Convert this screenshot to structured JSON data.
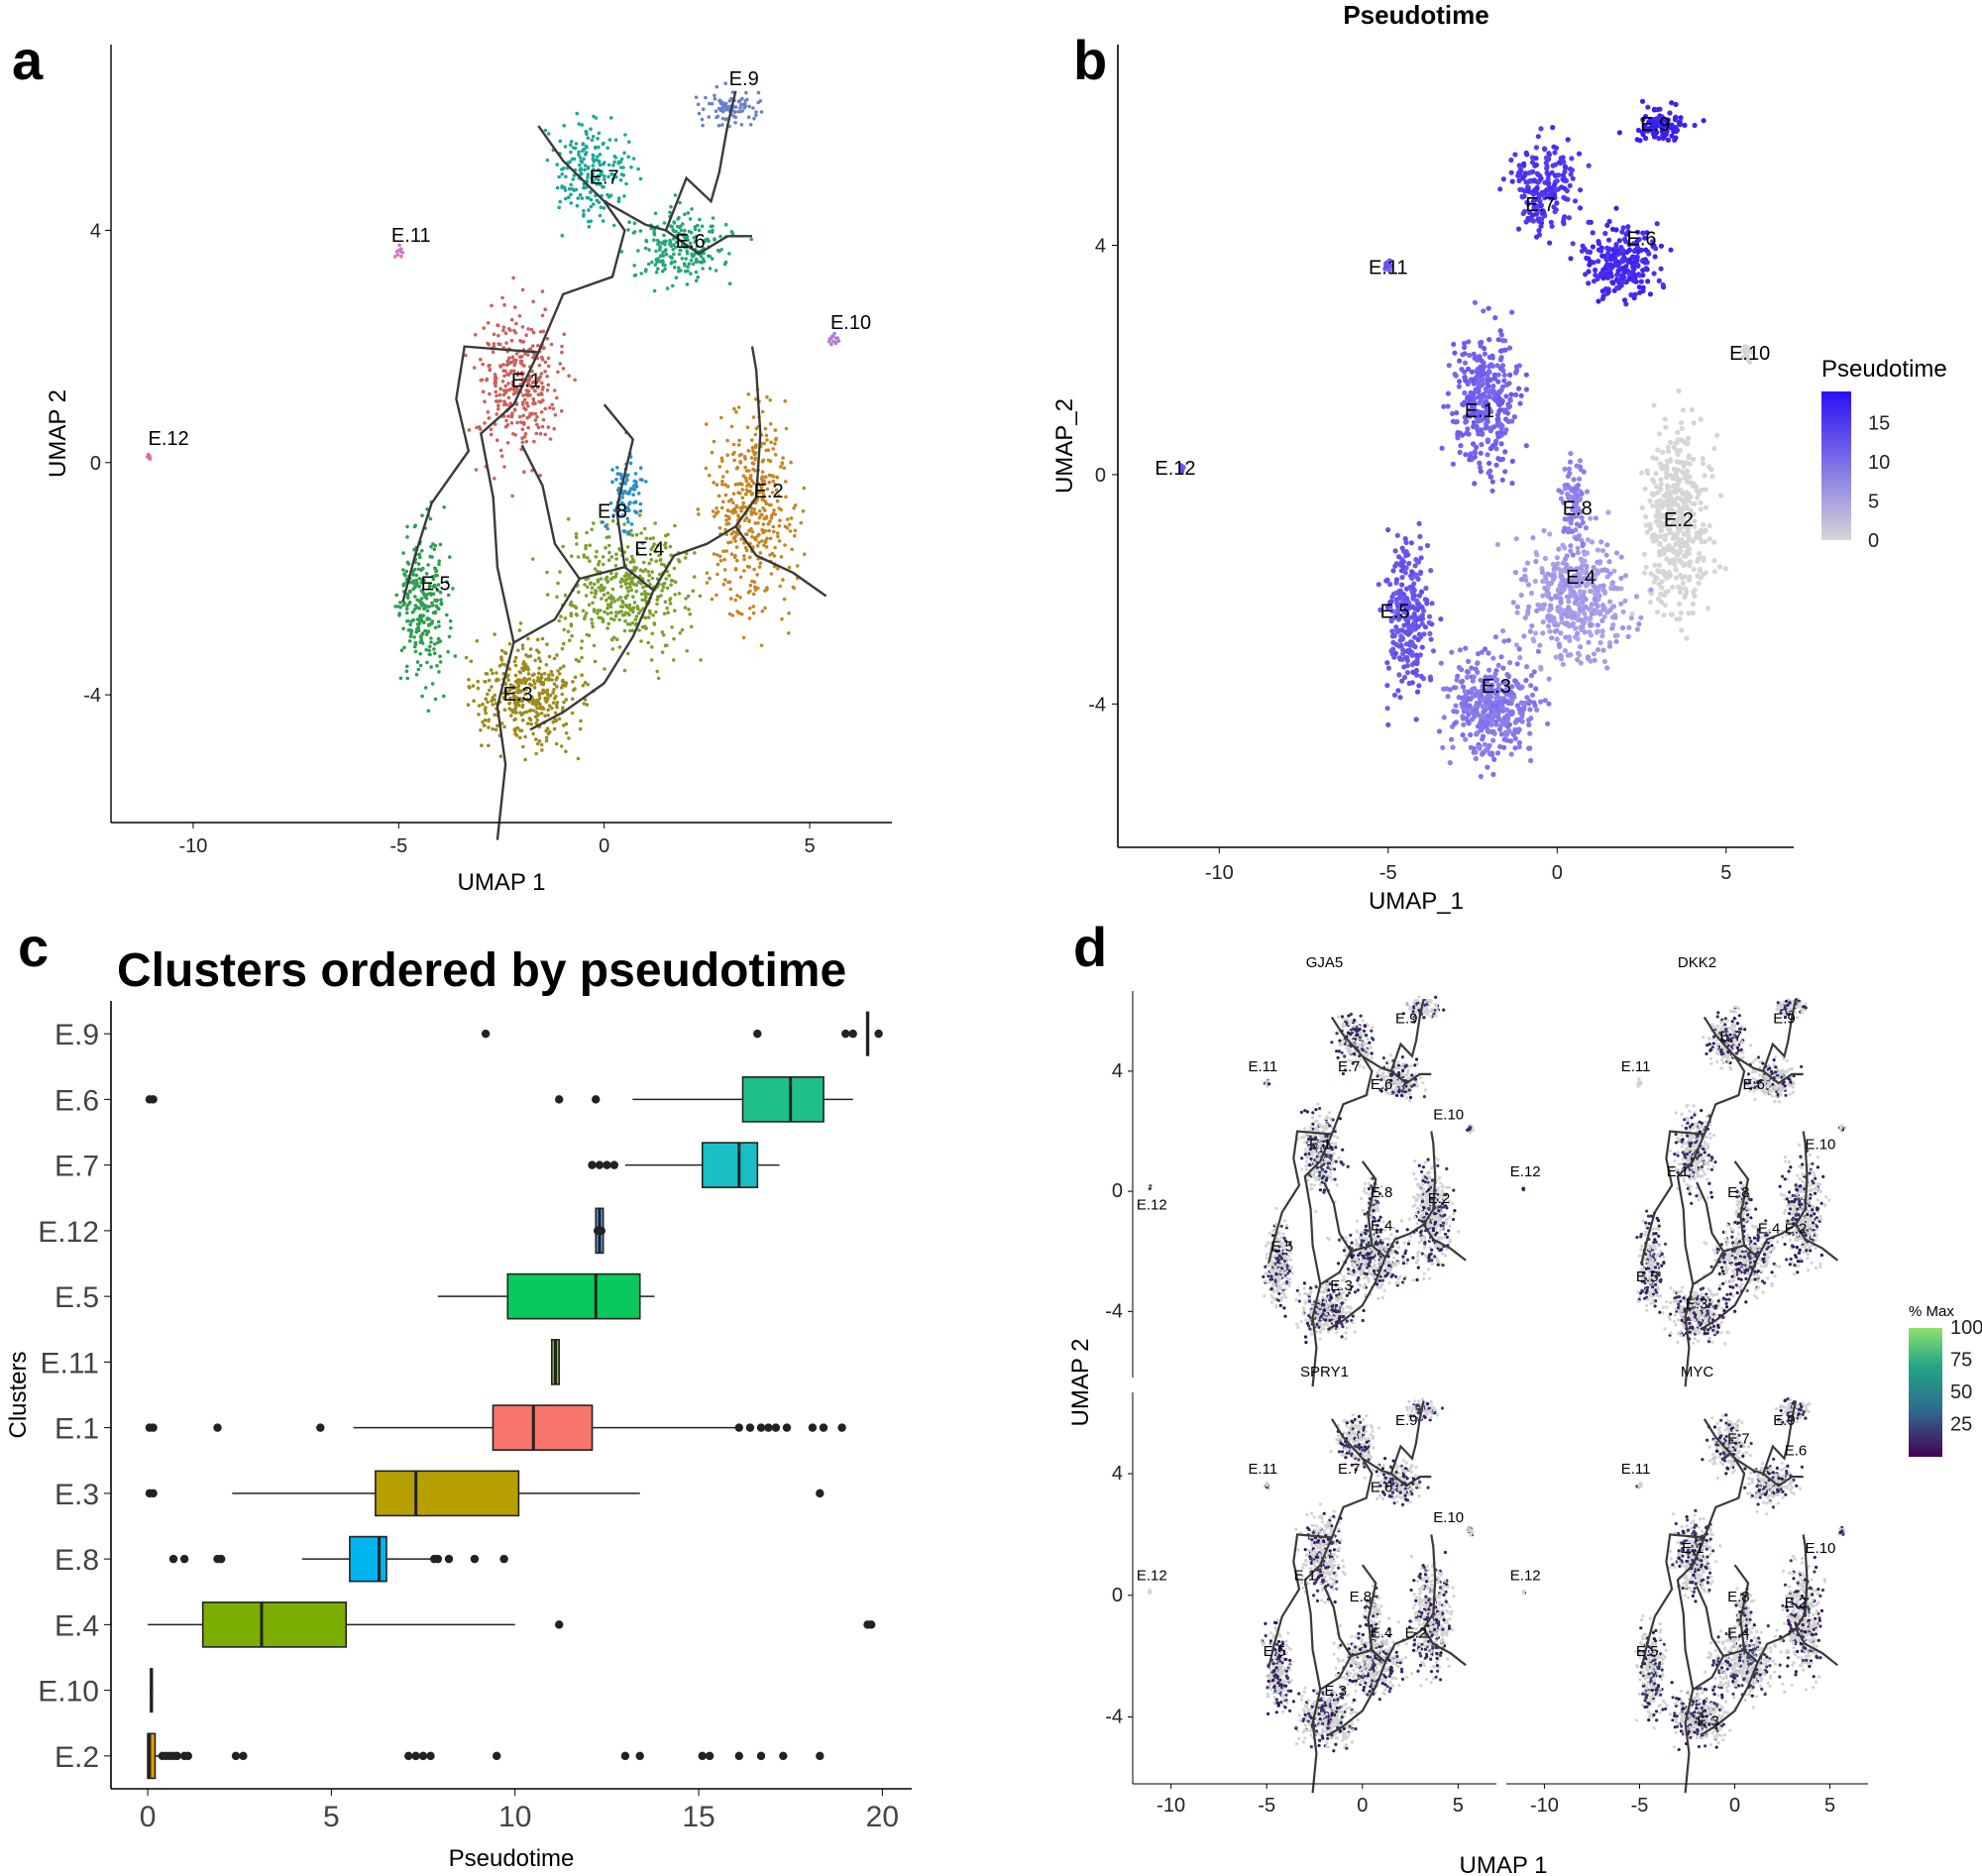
{
  "panel_labels": [
    "a",
    "b",
    "c",
    "d"
  ],
  "chart_data": [
    {
      "id": "a",
      "type": "scatter",
      "title": "",
      "xlabel": "UMAP 1",
      "ylabel": "UMAP 2",
      "xlim": [
        -12,
        7
      ],
      "ylim": [
        -6.2,
        7.2
      ],
      "xticks": [
        -10,
        -5,
        0,
        5
      ],
      "yticks": [
        -4,
        0,
        4
      ],
      "xtick_labels": [
        "-10",
        "-5",
        "0",
        "5"
      ],
      "ytick_labels": [
        "-4",
        "0",
        "4"
      ],
      "cluster_labels": [
        {
          "name": "E.1",
          "x": -1.9,
          "y": 1.3
        },
        {
          "name": "E.2",
          "x": 4.0,
          "y": -0.6
        },
        {
          "name": "E.3",
          "x": -2.1,
          "y": -4.1
        },
        {
          "name": "E.4",
          "x": 1.1,
          "y": -1.6
        },
        {
          "name": "E.5",
          "x": -4.1,
          "y": -2.2
        },
        {
          "name": "E.6",
          "x": 2.1,
          "y": 3.7
        },
        {
          "name": "E.7",
          "x": 0.0,
          "y": 4.8
        },
        {
          "name": "E.8",
          "x": 0.2,
          "y": -0.95
        },
        {
          "name": "E.9",
          "x": 3.4,
          "y": 6.5
        },
        {
          "name": "E.10",
          "x": 6.0,
          "y": 2.3
        },
        {
          "name": "E.11",
          "x": -4.7,
          "y": 3.8
        },
        {
          "name": "E.12",
          "x": -10.6,
          "y": 0.3
        }
      ],
      "colors": {
        "E.1": "#c9625c",
        "E.2": "#c48624",
        "E.3": "#9e8b20",
        "E.4": "#7aa12f",
        "E.5": "#2f9e50",
        "E.6": "#26a678",
        "E.7": "#1ea79a",
        "E.8": "#2a8fc9",
        "E.9": "#6b82c8",
        "E.10": "#b07ad0",
        "E.11": "#d875c2",
        "E.12": "#e06a9b"
      }
    },
    {
      "id": "b",
      "type": "scatter",
      "title": "Pseudotime",
      "xlabel": "UMAP_1",
      "ylabel": "UMAP_2",
      "xlim": [
        -13,
        7
      ],
      "ylim": [
        -6.5,
        7.5
      ],
      "xticks": [
        -10,
        -5,
        0,
        5
      ],
      "yticks": [
        -4,
        0,
        4
      ],
      "xtick_labels": [
        "-10",
        "-5",
        "0",
        "5"
      ],
      "ytick_labels": [
        "-4",
        "0",
        "4"
      ],
      "legend": {
        "title": "Pseudotime",
        "ticks": [
          "15",
          "10",
          "5",
          "0"
        ],
        "range": [
          0,
          19
        ],
        "position": "right"
      },
      "cluster_labels": [
        {
          "name": "E.1",
          "x": -2.3,
          "y": 1.0
        },
        {
          "name": "E.2",
          "x": 3.6,
          "y": -0.9
        },
        {
          "name": "E.3",
          "x": -1.8,
          "y": -3.8
        },
        {
          "name": "E.4",
          "x": 0.7,
          "y": -1.9
        },
        {
          "name": "E.5",
          "x": -4.8,
          "y": -2.5
        },
        {
          "name": "E.6",
          "x": 2.5,
          "y": 4.0
        },
        {
          "name": "E.7",
          "x": -0.5,
          "y": 4.6
        },
        {
          "name": "E.8",
          "x": 0.6,
          "y": -0.7
        },
        {
          "name": "E.9",
          "x": 2.9,
          "y": 6.0
        },
        {
          "name": "E.10",
          "x": 5.7,
          "y": 2.0
        },
        {
          "name": "E.11",
          "x": -5.0,
          "y": 3.5
        },
        {
          "name": "E.12",
          "x": -11.3,
          "y": 0.0
        }
      ]
    },
    {
      "id": "c",
      "type": "box",
      "title": "Clusters ordered by pseudotime",
      "xlabel": "Pseudotime",
      "ylabel": "Clusters",
      "xlim": [
        -1,
        20.8
      ],
      "xticks": [
        0,
        5,
        10,
        15,
        20
      ],
      "xtick_labels": [
        "0",
        "5",
        "10",
        "15",
        "20"
      ],
      "categories": [
        "E.9",
        "E.6",
        "E.7",
        "E.12",
        "E.5",
        "E.11",
        "E.1",
        "E.3",
        "E.8",
        "E.4",
        "E.10",
        "E.2"
      ],
      "boxes": [
        {
          "name": "E.9",
          "min": 19.6,
          "q1": 19.6,
          "median": 19.6,
          "q3": 19.6,
          "max": 19.6,
          "color": "#e07bd8",
          "outliers": [
            9.2,
            16.6,
            19.0,
            19.2,
            19.9
          ]
        },
        {
          "name": "E.6",
          "min": 13.2,
          "q1": 16.2,
          "median": 17.5,
          "q3": 18.4,
          "max": 19.2,
          "color": "#1fbf8c",
          "outliers": [
            0.05,
            0.15,
            11.2,
            12.2
          ]
        },
        {
          "name": "E.7",
          "min": 13.0,
          "q1": 15.1,
          "median": 16.1,
          "q3": 16.6,
          "max": 17.2,
          "color": "#19bfc4",
          "outliers": [
            12.1,
            12.3,
            12.5,
            12.7
          ]
        },
        {
          "name": "E.12",
          "min": 12.2,
          "q1": 12.2,
          "median": 12.3,
          "q3": 12.4,
          "max": 12.4,
          "color": "#4aa3f0",
          "outliers": [
            12.25,
            12.3,
            12.35
          ]
        },
        {
          "name": "E.5",
          "min": 7.9,
          "q1": 9.8,
          "median": 12.2,
          "q3": 13.4,
          "max": 13.8,
          "color": "#0ac95c",
          "outliers": []
        },
        {
          "name": "E.11",
          "min": 11.0,
          "q1": 11.0,
          "median": 11.1,
          "q3": 11.2,
          "max": 11.2,
          "color": "#7bbf2a",
          "outliers": []
        },
        {
          "name": "E.1",
          "min": 5.6,
          "q1": 9.4,
          "median": 10.5,
          "q3": 12.1,
          "max": 16.0,
          "color": "#f8766d",
          "outliers": [
            0.05,
            0.15,
            1.9,
            4.7,
            16.1,
            16.4,
            16.7,
            16.9,
            17.1,
            17.4,
            18.1,
            18.4,
            18.9
          ]
        },
        {
          "name": "E.3",
          "min": 2.3,
          "q1": 6.2,
          "median": 7.3,
          "q3": 10.1,
          "max": 13.4,
          "color": "#b79f00",
          "outliers": [
            0.05,
            0.15,
            18.3
          ]
        },
        {
          "name": "E.8",
          "min": 4.2,
          "q1": 5.5,
          "median": 6.3,
          "q3": 6.5,
          "max": 7.7,
          "color": "#00b4ef",
          "outliers": [
            0.7,
            1.0,
            1.9,
            2.0,
            7.8,
            7.9,
            8.2,
            8.9,
            9.7
          ]
        },
        {
          "name": "E.4",
          "min": 0.0,
          "q1": 1.5,
          "median": 3.1,
          "q3": 5.4,
          "max": 10.0,
          "color": "#7cae00",
          "outliers": [
            11.2,
            19.6,
            19.7
          ]
        },
        {
          "name": "E.10",
          "min": 0.05,
          "q1": 0.05,
          "median": 0.1,
          "q3": 0.15,
          "max": 0.15,
          "color": "#8aa0ff",
          "outliers": []
        },
        {
          "name": "E.2",
          "min": 0.0,
          "q1": 0.0,
          "median": 0.05,
          "q3": 0.2,
          "max": 0.4,
          "color": "#e69f00",
          "outliers": [
            0.4,
            0.5,
            0.6,
            0.7,
            0.8,
            1.0,
            1.1,
            2.4,
            2.6,
            7.1,
            7.3,
            7.5,
            7.7,
            9.5,
            13.0,
            13.4,
            15.1,
            15.3,
            16.1,
            16.7,
            17.3,
            18.3
          ]
        }
      ]
    },
    {
      "id": "d",
      "type": "scatter",
      "title": "",
      "xlabel": "UMAP 1",
      "ylabel": "UMAP 2",
      "xlim": [
        -12,
        7
      ],
      "ylim": [
        -6.2,
        7.0
      ],
      "xticks": [
        -10,
        -5,
        0,
        5
      ],
      "yticks": [
        -4,
        0,
        4
      ],
      "xtick_labels": [
        "-10",
        "-5",
        "0",
        "5"
      ],
      "ytick_labels": [
        "-4",
        "0",
        "4"
      ],
      "legend": {
        "title": "% Max",
        "ticks": [
          "100",
          "75",
          "50",
          "25"
        ],
        "range": [
          0,
          100
        ],
        "position": "right"
      },
      "facets": [
        {
          "gene": "GJA5",
          "labels": [
            {
              "name": "E.9",
              "x": 2.3,
              "y": 5.6
            },
            {
              "name": "E.11",
              "x": -5.2,
              "y": 4.0
            },
            {
              "name": "E.7",
              "x": -0.7,
              "y": 4.0
            },
            {
              "name": "E.6",
              "x": 1.0,
              "y": 3.4
            },
            {
              "name": "E.10",
              "x": 4.5,
              "y": 2.4
            },
            {
              "name": "E.12",
              "x": -11.0,
              "y": -0.6
            },
            {
              "name": "E.1",
              "x": -2.2,
              "y": 1.4
            },
            {
              "name": "E.8",
              "x": 1.0,
              "y": -0.2
            },
            {
              "name": "E.2",
              "x": 4.0,
              "y": -0.4
            },
            {
              "name": "E.4",
              "x": 1.0,
              "y": -1.3
            },
            {
              "name": "E.5",
              "x": -4.2,
              "y": -2.0
            },
            {
              "name": "E.3",
              "x": -1.1,
              "y": -3.3
            }
          ]
        },
        {
          "gene": "DKK2",
          "labels": [
            {
              "name": "E.9",
              "x": 2.6,
              "y": 5.6
            },
            {
              "name": "E.11",
              "x": -5.2,
              "y": 4.0
            },
            {
              "name": "E.7",
              "x": -0.2,
              "y": 5.0
            },
            {
              "name": "E.6",
              "x": 1.0,
              "y": 3.4
            },
            {
              "name": "E.10",
              "x": 4.5,
              "y": 1.4
            },
            {
              "name": "E.12",
              "x": -11.0,
              "y": 0.5
            },
            {
              "name": "E.1",
              "x": -3.0,
              "y": 0.5
            },
            {
              "name": "E.8",
              "x": 0.2,
              "y": -0.2
            },
            {
              "name": "E.2",
              "x": 3.2,
              "y": -1.4
            },
            {
              "name": "E.4",
              "x": 1.8,
              "y": -1.4
            },
            {
              "name": "E.5",
              "x": -4.6,
              "y": -3.0
            },
            {
              "name": "E.3",
              "x": -2.0,
              "y": -3.9
            }
          ]
        },
        {
          "gene": "SPRY1",
          "labels": [
            {
              "name": "E.9",
              "x": 2.3,
              "y": 5.6
            },
            {
              "name": "E.11",
              "x": -5.2,
              "y": 4.0
            },
            {
              "name": "E.7",
              "x": -0.7,
              "y": 4.0
            },
            {
              "name": "E.6",
              "x": 1.0,
              "y": 3.4
            },
            {
              "name": "E.10",
              "x": 4.5,
              "y": 2.4
            },
            {
              "name": "E.12",
              "x": -11.0,
              "y": 0.5
            },
            {
              "name": "E.1",
              "x": -3.0,
              "y": 0.5
            },
            {
              "name": "E.8",
              "x": -0.1,
              "y": -0.2
            },
            {
              "name": "E.2",
              "x": 2.8,
              "y": -1.4
            },
            {
              "name": "E.4",
              "x": 1.0,
              "y": -1.4
            },
            {
              "name": "E.5",
              "x": -4.6,
              "y": -2.0
            },
            {
              "name": "E.3",
              "x": -1.4,
              "y": -3.3
            }
          ]
        },
        {
          "gene": "MYC",
          "labels": [
            {
              "name": "E.9",
              "x": 2.6,
              "y": 5.6
            },
            {
              "name": "E.11",
              "x": -5.2,
              "y": 4.0
            },
            {
              "name": "E.7",
              "x": 0.2,
              "y": 5.0
            },
            {
              "name": "E.6",
              "x": 3.2,
              "y": 4.6
            },
            {
              "name": "E.10",
              "x": 4.5,
              "y": 1.4
            },
            {
              "name": "E.12",
              "x": -11.0,
              "y": 0.5
            },
            {
              "name": "E.1",
              "x": -2.2,
              "y": 1.4
            },
            {
              "name": "E.8",
              "x": 0.2,
              "y": -0.2
            },
            {
              "name": "E.2",
              "x": 3.2,
              "y": -0.4
            },
            {
              "name": "E.4",
              "x": 0.2,
              "y": -1.4
            },
            {
              "name": "E.5",
              "x": -4.6,
              "y": -2.0
            },
            {
              "name": "E.3",
              "x": -1.4,
              "y": -4.3
            }
          ]
        }
      ]
    }
  ]
}
